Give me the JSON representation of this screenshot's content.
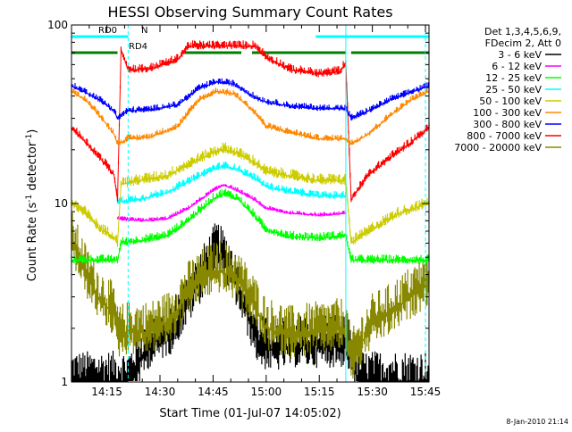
{
  "chart_data": {
    "type": "line",
    "title": "HESSI Observing Summary Count Rates",
    "xlabel": "Start Time (01-Jul-07 14:05:02)",
    "ylabel": "Count Rate (s⁻¹ detector⁻¹)",
    "ylabel_main": "Count Rate (s",
    "ylabel_mid": " detector",
    "ylabel_end": ")",
    "ylabel_sup": "-1",
    "footer_date": "8-Jan-2010 21:14",
    "y_scale": "log",
    "ylim": [
      1,
      100
    ],
    "xlim_minutes": [
      0,
      101
    ],
    "x_ticks": [
      {
        "minute": 10,
        "label": "14:15"
      },
      {
        "minute": 25,
        "label": "14:30"
      },
      {
        "minute": 40,
        "label": "14:45"
      },
      {
        "minute": 55,
        "label": "15:00"
      },
      {
        "minute": 70,
        "label": "15:15"
      },
      {
        "minute": 85,
        "label": "15:30"
      },
      {
        "minute": 100,
        "label": "15:45"
      }
    ],
    "y_ticks": [
      {
        "value": 1,
        "label": "1"
      },
      {
        "value": 10,
        "label": "10"
      },
      {
        "value": 100,
        "label": "100"
      }
    ],
    "legend": {
      "position": "right",
      "header": [
        "Det 1,3,4,5,6,9,",
        "FDecim 2, Att 0"
      ],
      "entries": [
        {
          "label": "3 - 6 keV",
          "color": "#000000"
        },
        {
          "label": "6 - 12 keV",
          "color": "#ff00ff"
        },
        {
          "label": "12 - 25 keV",
          "color": "#00ff00"
        },
        {
          "label": "25 - 50 keV",
          "color": "#00ffff"
        },
        {
          "label": "50 - 100 keV",
          "color": "#cccc00"
        },
        {
          "label": "100 - 300 keV",
          "color": "#ff8800"
        },
        {
          "label": "300 - 800 keV",
          "color": "#0000ff"
        },
        {
          "label": "800 - 7000 keV",
          "color": "#ff0000"
        },
        {
          "label": "7000 - 20000 keV",
          "color": "#888800"
        }
      ]
    },
    "flag_bars": [
      {
        "label": "RD0",
        "color": "#00ffff",
        "segments": [
          [
            0,
            16
          ],
          [
            69,
            101
          ]
        ]
      },
      {
        "label": "N",
        "color": "#00ffff",
        "segments": []
      },
      {
        "label": "RD4",
        "color": "#008000",
        "segments": [
          [
            0,
            13
          ],
          [
            32,
            48
          ],
          [
            51,
            77.5
          ],
          [
            79,
            101
          ]
        ]
      }
    ],
    "vertical_markers": [
      {
        "minute": 16,
        "color": "#00ffff",
        "style": "dashed"
      },
      {
        "minute": 77.5,
        "color": "#00ffff",
        "style": "solid"
      },
      {
        "minute": 100,
        "color": "#00ffff",
        "style": "dashed"
      }
    ],
    "series": [
      {
        "name": "3 - 6 keV",
        "color": "#000000",
        "noise": 0.5,
        "mode": "band",
        "points": [
          [
            0,
            1.0
          ],
          [
            13,
            1.0
          ],
          [
            16,
            1.0
          ],
          [
            22,
            1.6
          ],
          [
            28,
            1.9
          ],
          [
            33,
            2.8
          ],
          [
            38,
            4.2
          ],
          [
            41,
            5.4
          ],
          [
            45,
            4.2
          ],
          [
            49,
            2.6
          ],
          [
            53,
            1.6
          ],
          [
            57,
            1.5
          ],
          [
            62,
            1.6
          ],
          [
            70,
            1.6
          ],
          [
            78,
            1.6
          ],
          [
            81,
            1.0
          ],
          [
            101,
            1.0
          ]
        ]
      },
      {
        "name": "7000 - 20000 keV",
        "color": "#888800",
        "noise": 0.5,
        "mode": "band",
        "points": [
          [
            0,
            6.2
          ],
          [
            4,
            4.0
          ],
          [
            8,
            2.9
          ],
          [
            12,
            2.4
          ],
          [
            13,
            1.8
          ],
          [
            16,
            1.9
          ],
          [
            22,
            1.9
          ],
          [
            28,
            2.2
          ],
          [
            33,
            3.2
          ],
          [
            38,
            3.9
          ],
          [
            42,
            4.2
          ],
          [
            47,
            3.7
          ],
          [
            52,
            2.6
          ],
          [
            55,
            2.0
          ],
          [
            62,
            1.8
          ],
          [
            70,
            1.9
          ],
          [
            77.5,
            2.0
          ],
          [
            79,
            1.3
          ],
          [
            85,
            2.1
          ],
          [
            90,
            2.4
          ],
          [
            95,
            2.9
          ],
          [
            101,
            3.6
          ]
        ]
      },
      {
        "name": "12 - 25 keV",
        "color": "#00ff00",
        "noise": 0.08,
        "mode": "band",
        "points": [
          [
            0,
            4.8
          ],
          [
            13,
            4.8
          ],
          [
            14,
            6.0
          ],
          [
            20,
            6.2
          ],
          [
            27,
            6.6
          ],
          [
            33,
            8.0
          ],
          [
            40,
            10.6
          ],
          [
            43,
            11.4
          ],
          [
            47,
            10.6
          ],
          [
            52,
            8.4
          ],
          [
            55,
            7.1
          ],
          [
            62,
            6.5
          ],
          [
            70,
            6.4
          ],
          [
            77.5,
            6.6
          ],
          [
            79,
            4.8
          ],
          [
            101,
            4.8
          ]
        ]
      },
      {
        "name": "6 - 12 keV",
        "color": "#ff00ff",
        "noise": 0.04,
        "mode": "band",
        "points": [
          [
            13,
            8.2
          ],
          [
            20,
            8.0
          ],
          [
            27,
            8.2
          ],
          [
            33,
            9.4
          ],
          [
            40,
            11.8
          ],
          [
            43,
            12.7
          ],
          [
            47,
            11.8
          ],
          [
            52,
            10.4
          ],
          [
            55,
            9.4
          ],
          [
            62,
            8.8
          ],
          [
            70,
            8.6
          ],
          [
            77.5,
            8.8
          ]
        ]
      },
      {
        "name": "50 - 100 keV",
        "color": "#cccc00",
        "noise": 0.1,
        "mode": "band",
        "points": [
          [
            0,
            10.0
          ],
          [
            4,
            8.8
          ],
          [
            8,
            7.2
          ],
          [
            12,
            6.5
          ],
          [
            13,
            6.0
          ],
          [
            14,
            12.8
          ],
          [
            20,
            13.5
          ],
          [
            27,
            14.2
          ],
          [
            33,
            16.5
          ],
          [
            40,
            19.2
          ],
          [
            43,
            20.2
          ],
          [
            47,
            19.0
          ],
          [
            52,
            16.8
          ],
          [
            55,
            15.0
          ],
          [
            62,
            14.2
          ],
          [
            70,
            13.4
          ],
          [
            77.5,
            13.4
          ],
          [
            79,
            6.0
          ],
          [
            85,
            7.2
          ],
          [
            92,
            8.7
          ],
          [
            101,
            10.0
          ]
        ]
      },
      {
        "name": "25 - 50 keV",
        "color": "#00ffff",
        "noise": 0.07,
        "mode": "band",
        "points": [
          [
            13,
            10.2
          ],
          [
            20,
            10.6
          ],
          [
            27,
            11.5
          ],
          [
            33,
            13.2
          ],
          [
            40,
            15.6
          ],
          [
            43,
            16.2
          ],
          [
            47,
            15.5
          ],
          [
            52,
            13.8
          ],
          [
            55,
            12.4
          ],
          [
            62,
            11.6
          ],
          [
            70,
            11.0
          ],
          [
            77.5,
            11.0
          ]
        ]
      },
      {
        "name": "800 - 7000 keV",
        "color": "#ff0000",
        "noise": 0.08,
        "mode": "band",
        "points": [
          [
            0,
            26.5
          ],
          [
            4,
            22.0
          ],
          [
            8,
            18.0
          ],
          [
            12,
            14.5
          ],
          [
            13,
            10.5
          ],
          [
            14,
            73.0
          ],
          [
            16,
            56.0
          ],
          [
            22,
            56.5
          ],
          [
            30,
            64.0
          ],
          [
            33,
            76.0
          ],
          [
            52,
            76.0
          ],
          [
            55,
            66.0
          ],
          [
            62,
            56.0
          ],
          [
            70,
            53.0
          ],
          [
            76,
            55.0
          ],
          [
            77.5,
            62.0
          ],
          [
            79,
            10.5
          ],
          [
            84,
            14.5
          ],
          [
            90,
            18.0
          ],
          [
            96,
            22.0
          ],
          [
            101,
            26.5
          ]
        ]
      },
      {
        "name": "300 - 800 keV",
        "color": "#0000ff",
        "noise": 0.06,
        "mode": "band",
        "points": [
          [
            0,
            45.5
          ],
          [
            4,
            42.0
          ],
          [
            8,
            38.0
          ],
          [
            12,
            33.0
          ],
          [
            13,
            30.0
          ],
          [
            16,
            33.0
          ],
          [
            22,
            33.5
          ],
          [
            30,
            35.5
          ],
          [
            36,
            44.0
          ],
          [
            41,
            48.0
          ],
          [
            46,
            46.5
          ],
          [
            52,
            39.0
          ],
          [
            55,
            37.0
          ],
          [
            62,
            35.0
          ],
          [
            70,
            34.0
          ],
          [
            77.5,
            34.0
          ],
          [
            79,
            30.0
          ],
          [
            84,
            33.0
          ],
          [
            90,
            38.0
          ],
          [
            96,
            42.0
          ],
          [
            101,
            45.5
          ]
        ]
      },
      {
        "name": "100 - 300 keV",
        "color": "#ff8800",
        "noise": 0.06,
        "mode": "band",
        "points": [
          [
            0,
            42.5
          ],
          [
            4,
            38.0
          ],
          [
            8,
            31.0
          ],
          [
            12,
            24.5
          ],
          [
            13,
            21.5
          ],
          [
            16,
            23.0
          ],
          [
            22,
            23.5
          ],
          [
            30,
            27.0
          ],
          [
            36,
            38.0
          ],
          [
            41,
            42.5
          ],
          [
            46,
            41.0
          ],
          [
            52,
            32.0
          ],
          [
            55,
            27.0
          ],
          [
            62,
            25.0
          ],
          [
            70,
            23.0
          ],
          [
            77.5,
            23.0
          ],
          [
            79,
            21.5
          ],
          [
            84,
            24.5
          ],
          [
            90,
            31.0
          ],
          [
            96,
            38.0
          ],
          [
            101,
            42.5
          ]
        ]
      }
    ]
  }
}
